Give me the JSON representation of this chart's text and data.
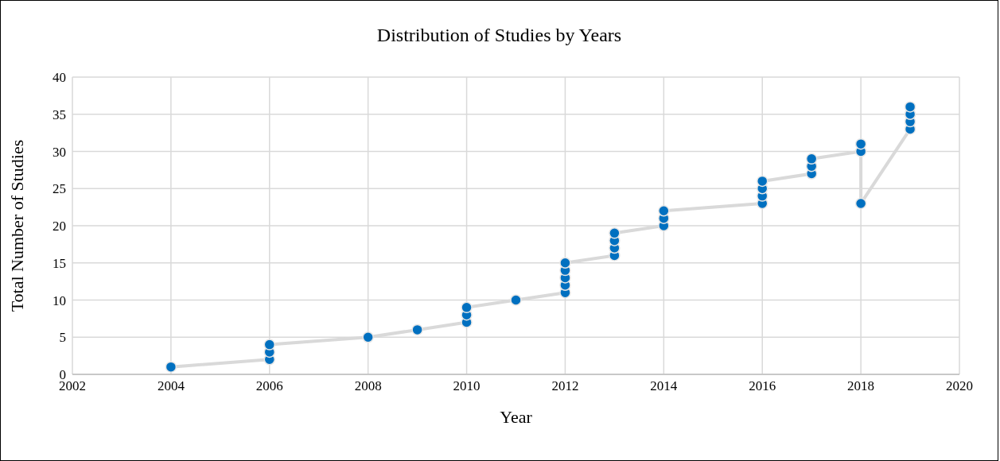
{
  "chart_data": {
    "type": "scatter",
    "title": "Distribution of Studies by Years",
    "xlabel": "Year",
    "ylabel": "Total Number of Studies",
    "x": [
      2004,
      2006,
      2006,
      2006,
      2008,
      2009,
      2010,
      2010,
      2010,
      2011,
      2012,
      2012,
      2012,
      2012,
      2012,
      2013,
      2013,
      2013,
      2013,
      2014,
      2014,
      2014,
      2016,
      2016,
      2016,
      2016,
      2017,
      2017,
      2017,
      2018,
      2018,
      2018,
      2019,
      2019,
      2019,
      2019
    ],
    "series": [
      {
        "type": "line",
        "color": "#d9d9d9",
        "marker": "none",
        "values": [
          1,
          2,
          3,
          4,
          5,
          6,
          7,
          8,
          9,
          10,
          11,
          12,
          13,
          14,
          15,
          16,
          17,
          18,
          19,
          20,
          21,
          22,
          23,
          24,
          25,
          26,
          27,
          28,
          29,
          30,
          31,
          23,
          33,
          34,
          35,
          36
        ]
      },
      {
        "color": "#0070c0",
        "marker": "circle",
        "values": [
          1,
          2,
          3,
          4,
          5,
          6,
          7,
          8,
          9,
          10,
          11,
          12,
          13,
          14,
          15,
          16,
          17,
          18,
          19,
          20,
          21,
          22,
          23,
          24,
          25,
          26,
          27,
          28,
          29,
          30,
          31,
          23,
          33,
          34,
          35,
          36
        ]
      }
    ],
    "xlim": [
      2002,
      2020
    ],
    "xticks": [
      2002,
      2004,
      2006,
      2008,
      2010,
      2012,
      2014,
      2016,
      2018,
      2020
    ],
    "ylim": [
      0,
      40
    ],
    "yticks": [
      0,
      5,
      10,
      15,
      20,
      25,
      30,
      35,
      40
    ],
    "grid": true
  }
}
